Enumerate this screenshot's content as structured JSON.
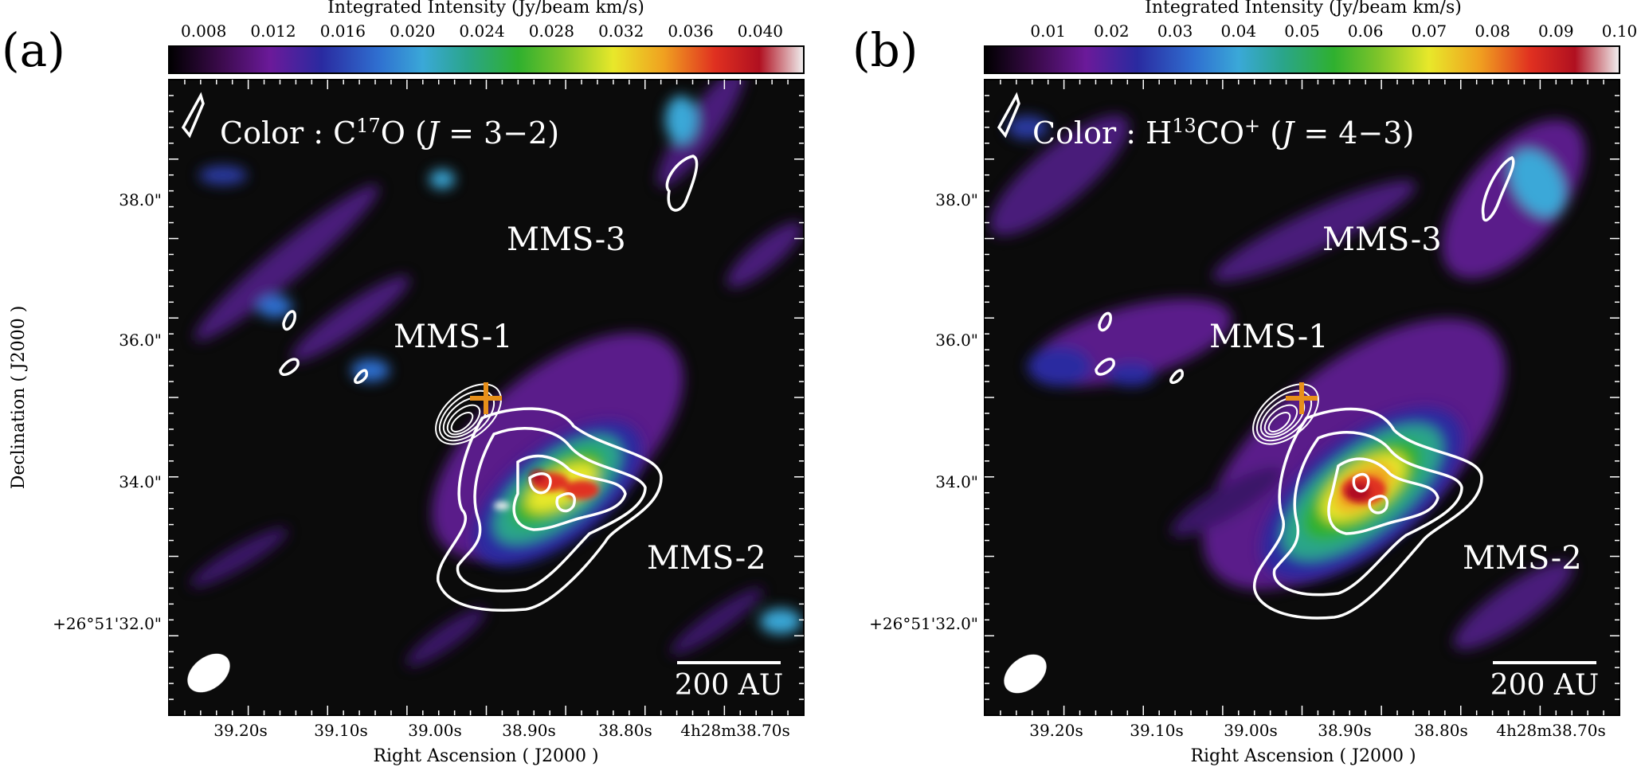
{
  "panels": [
    {
      "letter": "(a)",
      "colorbar_title": "Integrated Intensity (Jy/beam km/s)",
      "colorbar_ticks": [
        "0.008",
        "0.012",
        "0.016",
        "0.020",
        "0.024",
        "0.028",
        "0.032",
        "0.036",
        "0.040"
      ],
      "colorbar_range": [
        0.006,
        0.0425
      ],
      "color_label_prefix": "Color : C",
      "color_label_sup": "17",
      "color_label_mid": "O (",
      "color_label_italic": "J",
      "color_label_suffix": " = 3−2)",
      "sources": [
        "MMS-3",
        "MMS-1",
        "MMS-2"
      ],
      "scale_bar_label": "200 AU",
      "y_ticks": [
        "38.0\"",
        "36.0\"",
        "34.0\"",
        "+26°51'32.0\""
      ],
      "x_ticks": [
        "39.20s",
        "39.10s",
        "39.00s",
        "38.90s",
        "38.80s",
        "4h28m38.70s"
      ],
      "xlabel": "Right Ascension ( J2000 )",
      "ylabel": "Declination ( J2000 )"
    },
    {
      "letter": "(b)",
      "colorbar_title": "Integrated Intensity (Jy/beam km/s)",
      "colorbar_ticks": [
        "0.01",
        "0.02",
        "0.03",
        "0.04",
        "0.05",
        "0.06",
        "0.07",
        "0.08",
        "0.09",
        "0.10"
      ],
      "colorbar_range": [
        0.0,
        0.1
      ],
      "color_label_prefix": "Color : H",
      "color_label_sup": "13",
      "color_label_mid": "CO",
      "color_label_sup2": "+",
      "color_label_after": " (",
      "color_label_italic": "J",
      "color_label_suffix": " = 4−3)",
      "sources": [
        "MMS-3",
        "MMS-1",
        "MMS-2"
      ],
      "scale_bar_label": "200 AU",
      "y_ticks": [
        "38.0\"",
        "36.0\"",
        "34.0\"",
        "+26°51'32.0\""
      ],
      "x_ticks": [
        "39.20s",
        "39.10s",
        "39.00s",
        "38.90s",
        "38.80s",
        "4h28m38.70s"
      ],
      "xlabel": "Right Ascension ( J2000 )",
      "ylabel": "Declination ( J2000 )"
    }
  ],
  "colors": {
    "background": "#0b0b0b",
    "contour": "#ffffff",
    "marker": "#e8901a"
  },
  "chart_data": [
    {
      "type": "heatmap",
      "title": "",
      "xlabel": "Right Ascension ( J2000 )",
      "ylabel": "Declination ( J2000 )",
      "colorbar_label": "Integrated Intensity (Jy/beam km/s)",
      "colorbar_ticks": [
        0.008,
        0.012,
        0.016,
        0.02,
        0.024,
        0.028,
        0.032,
        0.036,
        0.04
      ],
      "x_ticks": [
        "39.20s",
        "39.10s",
        "39.00s",
        "38.90s",
        "38.80s",
        "4h28m38.70s"
      ],
      "y_ticks": [
        "38.0\"",
        "36.0\"",
        "34.0\"",
        "+26°51'32.0\""
      ],
      "map_label": "C17O (J = 3−2)",
      "sources": [
        "MMS-1",
        "MMS-2",
        "MMS-3"
      ],
      "peak_intensity_approx": 0.041
    },
    {
      "type": "heatmap",
      "title": "",
      "xlabel": "Right Ascension ( J2000 )",
      "ylabel": "Declination ( J2000 )",
      "colorbar_label": "Integrated Intensity (Jy/beam km/s)",
      "colorbar_ticks": [
        0.01,
        0.02,
        0.03,
        0.04,
        0.05,
        0.06,
        0.07,
        0.08,
        0.09,
        0.1
      ],
      "x_ticks": [
        "39.20s",
        "39.10s",
        "39.00s",
        "38.90s",
        "38.80s",
        "4h28m38.70s"
      ],
      "y_ticks": [
        "38.0\"",
        "36.0\"",
        "34.0\"",
        "+26°51'32.0\""
      ],
      "map_label": "H13CO+ (J = 4−3)",
      "sources": [
        "MMS-1",
        "MMS-2",
        "MMS-3"
      ],
      "peak_intensity_approx": 0.095
    }
  ]
}
